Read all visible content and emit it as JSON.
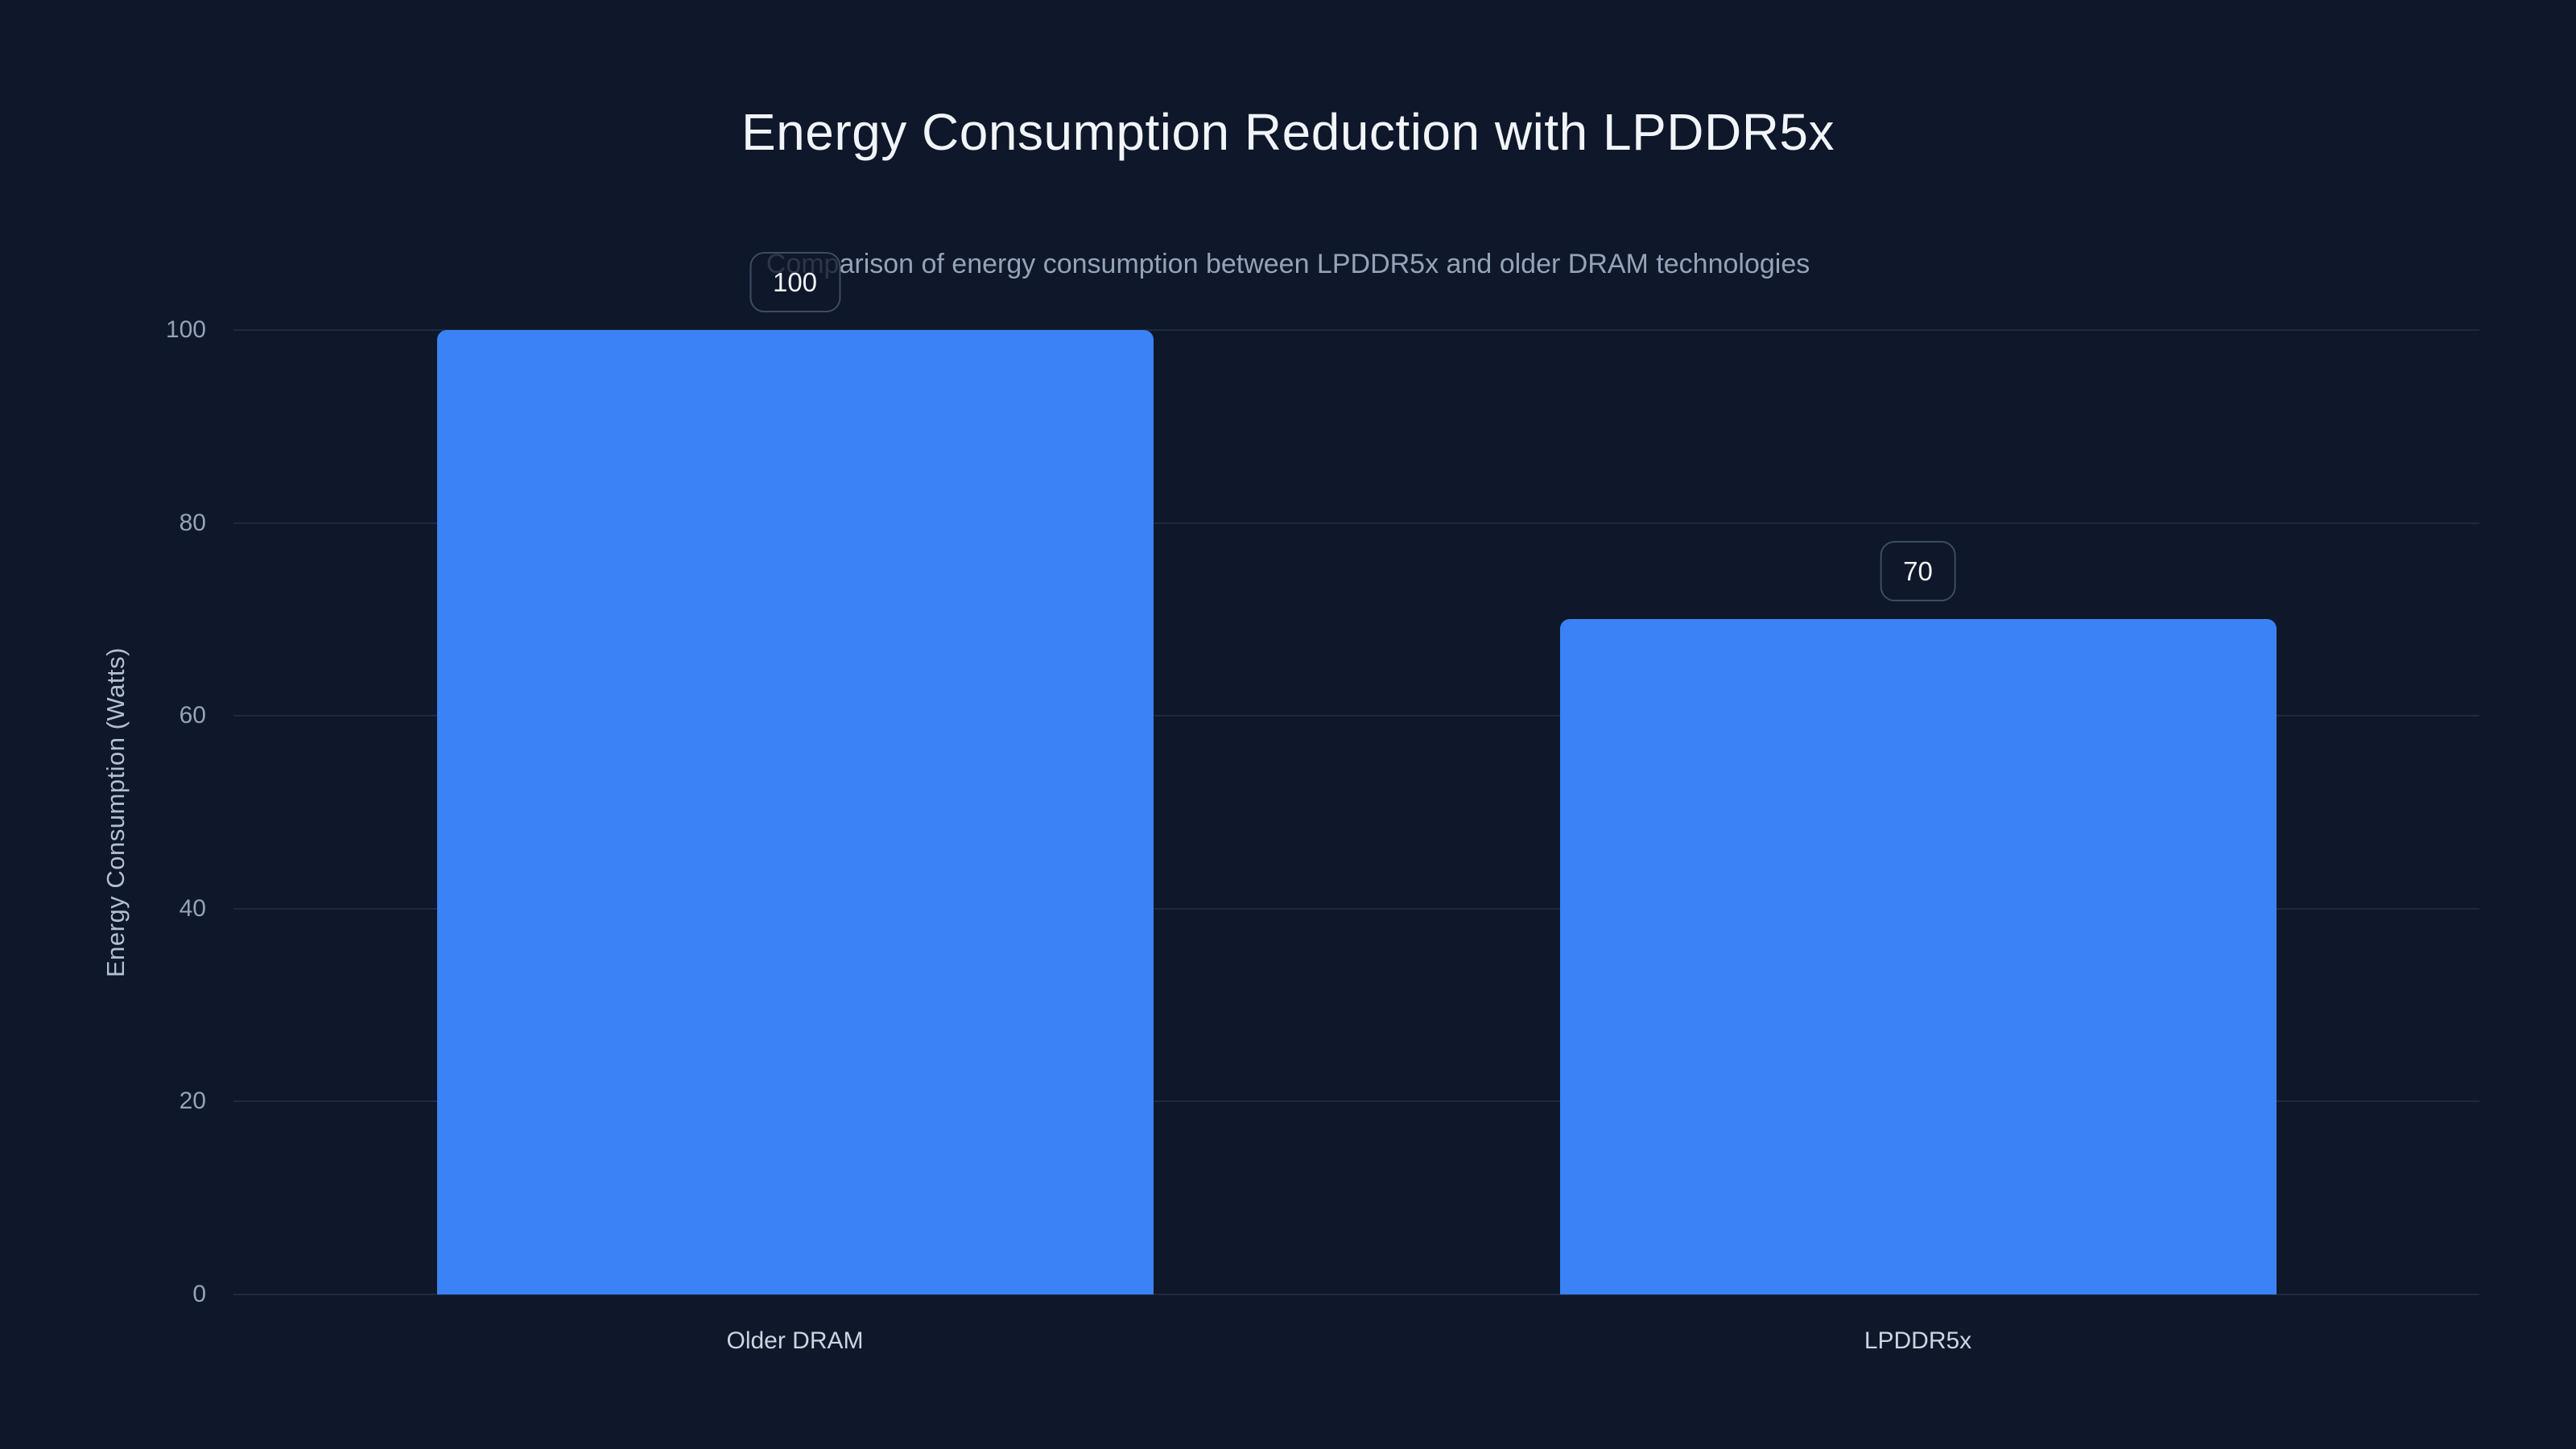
{
  "header": {
    "title": "Energy Consumption Reduction with LPDDR5x",
    "subtitle": "Comparison of energy consumption between LPDDR5x and older DRAM technologies"
  },
  "chart_data": {
    "type": "bar",
    "title": "Energy Consumption Reduction with LPDDR5x",
    "subtitle": "Comparison of energy consumption between LPDDR5x and older DRAM technologies",
    "categories": [
      "Older DRAM",
      "LPDDR5x"
    ],
    "values": [
      100,
      70
    ],
    "value_labels": [
      "100",
      "70"
    ],
    "xlabel": "",
    "ylabel": "Energy Consumption (Watts)",
    "ylim": [
      0,
      100
    ],
    "yticks": [
      0,
      20,
      40,
      60,
      80,
      100
    ],
    "grid": "horizontal",
    "legend": "none",
    "colors": {
      "background": "#0f172a",
      "bar": "#3b82f6",
      "gridline": "#1e2a3f",
      "title_text": "#f1f5f9",
      "subtitle_text": "#94a3b8",
      "tick_text": "#94a3b8",
      "category_text": "#cbd5e1",
      "axis_title_text": "#b3c0d1",
      "badge_border": "#3e4c61",
      "badge_background": "rgba(15,23,42,0.78)",
      "badge_text": "#f1f5f9"
    }
  }
}
